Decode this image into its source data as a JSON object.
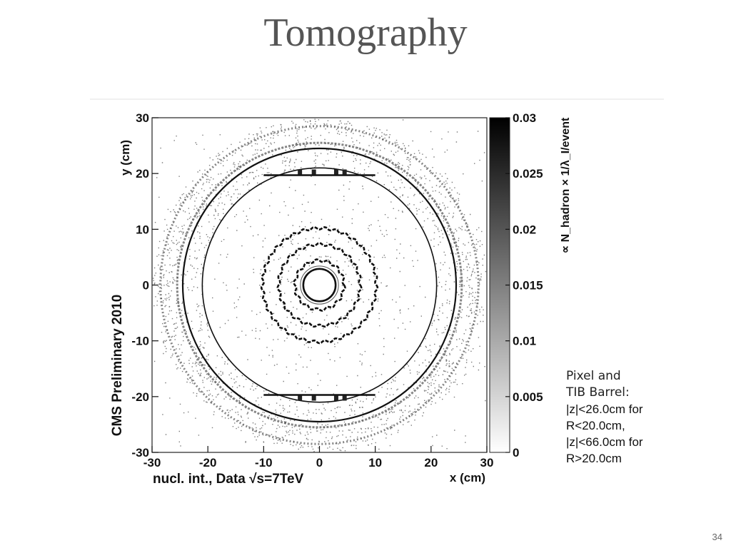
{
  "slide": {
    "title": "Tomography",
    "page_number": "34"
  },
  "annotation": {
    "lines": [
      "Pixel and",
      "TIB Barrel:",
      "|z|<26.0cm for",
      "R<20.0cm,",
      "|z|<66.0cm for",
      "R>20.0cm"
    ]
  },
  "chart_data": {
    "type": "heatmap",
    "xlabel": "x (cm)",
    "ylabel": "y (cm)",
    "xlim": [
      -30,
      30
    ],
    "ylim": [
      -30,
      30
    ],
    "x_ticks": [
      -30,
      -20,
      -10,
      0,
      10,
      20,
      30
    ],
    "y_ticks": [
      -30,
      -20,
      -10,
      0,
      10,
      20,
      30
    ],
    "colorbar": {
      "label": "∝ N_hadron × 1/λ_I/event",
      "range": [
        0,
        0.03
      ],
      "ticks": [
        "0",
        "0.005",
        "0.01",
        "0.015",
        "0.02",
        "0.025",
        "0.03"
      ],
      "colors": [
        "#ffffff",
        "#000000"
      ]
    },
    "side_label": "CMS Preliminary 2010",
    "bottom_label": "nucl. int., Data √s=7TeV",
    "structures": {
      "beam_pipe_radius_cm": 2.9,
      "pixel_layer_radii_cm": [
        4.4,
        7.3,
        10.2
      ],
      "circle_radii_cm": [
        21.0,
        24.5
      ],
      "tib_layer_radii_cm": [
        25.5,
        28.5
      ],
      "support_bars_y_cm": [
        19.7,
        -19.7
      ],
      "support_bars_x_extent_cm": [
        -10,
        10
      ]
    }
  }
}
